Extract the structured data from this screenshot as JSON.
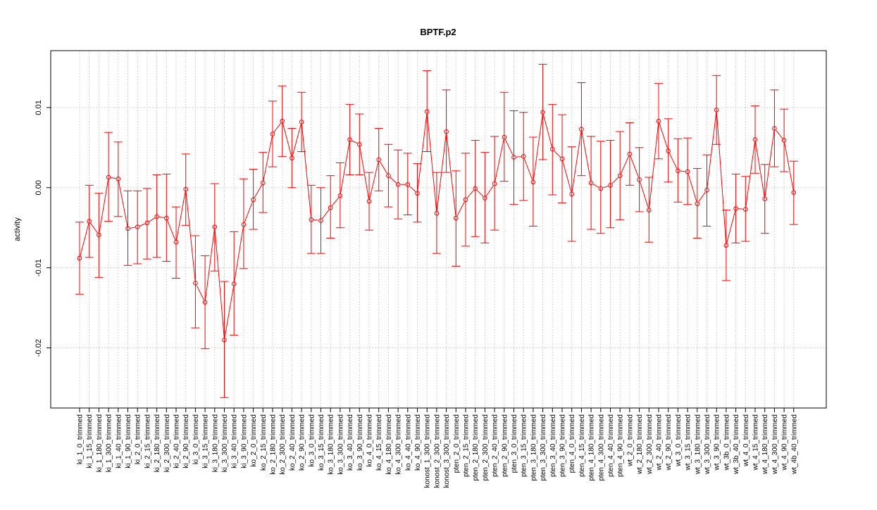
{
  "chart_data": {
    "type": "line",
    "title": "BPTF.p2",
    "xlabel": "",
    "ylabel": "activity",
    "ylim": [
      -0.0275,
      0.0171
    ],
    "yticks": [
      {
        "value": -0.02,
        "label": "-0.02"
      },
      {
        "value": -0.01,
        "label": "-0.01"
      },
      {
        "value": 0.0,
        "label": "0.00"
      },
      {
        "value": 0.01,
        "label": "0.01"
      }
    ],
    "grid": true,
    "colors": {
      "series": "#ff0000",
      "grid": "#d3d3d3",
      "frame": "#000000"
    },
    "categories": [
      "ki_1_0_trimmed",
      "ki_1_15_trimmed",
      "ki_1_180_trimmed",
      "ki_1_300_trimmed",
      "ki_1_40_trimmed",
      "ki_1_90_trimmed",
      "ki_2_0_trimmed",
      "ki_2_15_trimmed",
      "ki_2_180_trimmed",
      "ki_2_300_trimmed",
      "ki_2_40_trimmed",
      "ki_2_90_trimmed",
      "ki_3_0_trimmed",
      "ki_3_15_trimmed",
      "ki_3_180_trimmed",
      "ki_3_300_trimmed",
      "ki_3_40_trimmed",
      "ki_3_90_trimmed",
      "ko_2_0_trimmed",
      "ko_2_15_trimmed",
      "ko_2_180_trimmed",
      "ko_2_300_trimmed",
      "ko_2_40_trimmed",
      "ko_2_90_trimmed",
      "ko_3_0_trimmed",
      "ko_3_15_trimmed",
      "ko_3_180_trimmed",
      "ko_3_300_trimmed",
      "ko_3_40_trimmed",
      "ko_3_90_trimmed",
      "ko_4_0_trimmed",
      "ko_4_15_trimmed",
      "ko_4_180_trimmed",
      "ko_4_300_trimmed",
      "ko_4_40_trimmed",
      "ko_4_90_trimmed",
      "konost_1_300_trimmed",
      "konost_2_300_trimmed",
      "konost_3_300_trimmed",
      "pten_2_0_trimmed",
      "pten_2_15_trimmed",
      "pten_2_180_trimmed",
      "pten_2_300_trimmed",
      "pten_2_40_trimmed",
      "pten_2_90_trimmed",
      "pten_3_0_trimmed",
      "pten_3_15_trimmed",
      "pten_3_180_trimmed",
      "pten_3_300_trimmed",
      "pten_3_40_trimmed",
      "pten_3_90_trimmed",
      "pten_4_0_trimmed",
      "pten_4_15_trimmed",
      "pten_4_180_trimmed",
      "pten_4_300_trimmed",
      "pten_4_40_trimmed",
      "pten_4_90_trimmed",
      "wt_2_0_trimmed",
      "wt_2_180_trimmed",
      "wt_2_300_trimmed",
      "wt_2_40_trimmed",
      "wt_2_90_trimmed",
      "wt_3_0_trimmed",
      "wt_3_15_trimmed",
      "wt_3_180_trimmed",
      "wt_3_300_trimmed",
      "wt_3_90_trimmed",
      "wt_3b_0_trimmed",
      "wt_3b_40_trimmed",
      "wt_4_0_trimmed",
      "wt_4_15_trimmed",
      "wt_4_180_trimmed",
      "wt_4_300_trimmed",
      "wt_4_90_trimmed",
      "wt_4b_40_trimmed"
    ],
    "series": [
      {
        "values": [
          -0.0088,
          -0.0042,
          -0.0059,
          0.0013,
          0.0011,
          -0.0051,
          -0.0049,
          -0.0044,
          -0.0036,
          -0.0038,
          -0.0068,
          -0.0002,
          -0.0119,
          -0.0143,
          -0.0049,
          -0.019,
          -0.012,
          -0.0046,
          -0.0015,
          0.0006,
          0.0067,
          0.0083,
          0.0037,
          0.0082,
          -0.004,
          -0.0041,
          -0.0025,
          -0.001,
          0.006,
          0.0054,
          -0.0017,
          0.0035,
          0.0015,
          0.0004,
          0.0004,
          -0.0007,
          0.0095,
          -0.0032,
          0.007,
          -0.0038,
          -0.0015,
          -0.0001,
          -0.0013,
          0.0005,
          0.0063,
          0.0038,
          0.0039,
          0.0007,
          0.0094,
          0.0048,
          0.0036,
          -0.0008,
          0.0073,
          0.0006,
          -0.0001,
          0.0003,
          0.0015,
          0.0042,
          0.001,
          -0.0028,
          0.0083,
          0.0046,
          0.0021,
          0.002,
          -0.002,
          -0.0003,
          0.0097,
          -0.0072,
          -0.0026,
          -0.0027,
          0.006,
          -0.0014,
          0.0074,
          0.0059,
          -0.0006
        ],
        "lower": [
          -0.0133,
          -0.0087,
          -0.0112,
          -0.0042,
          -0.0036,
          -0.0097,
          -0.0095,
          -0.0089,
          -0.0087,
          -0.0092,
          -0.0113,
          -0.0047,
          -0.0175,
          -0.0201,
          -0.0104,
          -0.0262,
          -0.0184,
          -0.0101,
          -0.0052,
          -0.0031,
          0.0026,
          0.0039,
          0.0,
          0.0045,
          -0.0082,
          -0.0082,
          -0.0063,
          -0.005,
          0.0016,
          0.0016,
          -0.0053,
          -0.0004,
          -0.0024,
          -0.0039,
          -0.0034,
          -0.0043,
          0.0045,
          -0.0082,
          0.0019,
          -0.0098,
          -0.0073,
          -0.0061,
          -0.0069,
          -0.0053,
          0.0008,
          -0.0021,
          -0.0016,
          -0.0048,
          0.0035,
          -0.0009,
          -0.0019,
          -0.0067,
          0.0015,
          -0.0052,
          -0.0057,
          -0.005,
          -0.004,
          0.0003,
          -0.003,
          -0.0068,
          0.0036,
          0.0007,
          -0.0018,
          -0.0021,
          -0.0063,
          -0.0048,
          0.0054,
          -0.0116,
          -0.0069,
          -0.0067,
          0.0018,
          -0.0057,
          0.0026,
          0.002,
          -0.0046
        ],
        "upper": [
          -0.0043,
          0.0003,
          -0.0007,
          0.0069,
          0.0057,
          -0.0004,
          -0.0004,
          -0.0001,
          0.0016,
          0.0017,
          -0.0024,
          0.0042,
          -0.006,
          -0.0085,
          0.0005,
          -0.0117,
          -0.0055,
          0.0011,
          0.0023,
          0.0044,
          0.0108,
          0.0127,
          0.0074,
          0.0119,
          0.0003,
          0.0,
          0.0015,
          0.0031,
          0.0104,
          0.0092,
          0.0019,
          0.0074,
          0.0054,
          0.0047,
          0.0043,
          0.003,
          0.0146,
          0.0019,
          0.0122,
          0.0021,
          0.0043,
          0.0059,
          0.0044,
          0.0064,
          0.0119,
          0.0096,
          0.0094,
          0.0063,
          0.0154,
          0.0104,
          0.0091,
          0.0051,
          0.0131,
          0.0064,
          0.0058,
          0.0059,
          0.007,
          0.0081,
          0.005,
          0.0013,
          0.013,
          0.0086,
          0.0061,
          0.0062,
          0.0024,
          0.0041,
          0.014,
          -0.0028,
          0.0017,
          0.0014,
          0.0102,
          0.0029,
          0.0122,
          0.0098,
          0.0033
        ]
      }
    ]
  }
}
